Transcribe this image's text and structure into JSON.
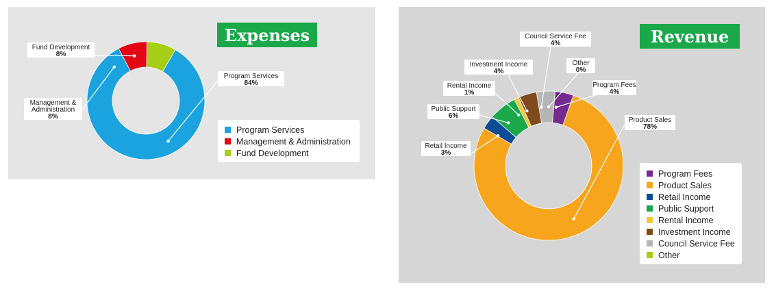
{
  "chart_data": [
    {
      "type": "pie",
      "title": "Expenses",
      "categories": [
        "Program Services",
        "Management & Administration",
        "Fund Development"
      ],
      "values": [
        84,
        8,
        8
      ],
      "value_labels": [
        "84%",
        "8%",
        "8%"
      ],
      "callout_names": [
        "Program Services",
        "Management &\nAdministration",
        "Fund Development"
      ],
      "colors": [
        "#1aa3df",
        "#e30613",
        "#a6ce16"
      ],
      "legend": "bottom-right",
      "style": "donut"
    },
    {
      "type": "pie",
      "title": "Revenue",
      "categories": [
        "Program Fees",
        "Product Sales",
        "Retail Income",
        "Public Support",
        "Rental Income",
        "Investment Income",
        "Council Service Fee",
        "Other"
      ],
      "values": [
        4,
        78,
        3,
        6,
        1,
        4,
        4,
        0
      ],
      "value_labels": [
        "4%",
        "78%",
        "3%",
        "6%",
        "1%",
        "4%",
        "4%",
        "0%"
      ],
      "callout_names": [
        "Program Fees",
        "Product Sales",
        "Retail Income",
        "Public Support",
        "Rental Income",
        "Investment Income",
        "Council Service Fee",
        "Other"
      ],
      "colors": [
        "#742a8e",
        "#f7a51c",
        "#0c4c94",
        "#1aa84a",
        "#f2c73b",
        "#7f4a1e",
        "#b5b5b5",
        "#a6ce16"
      ],
      "legend": "bottom-right",
      "style": "donut"
    }
  ]
}
